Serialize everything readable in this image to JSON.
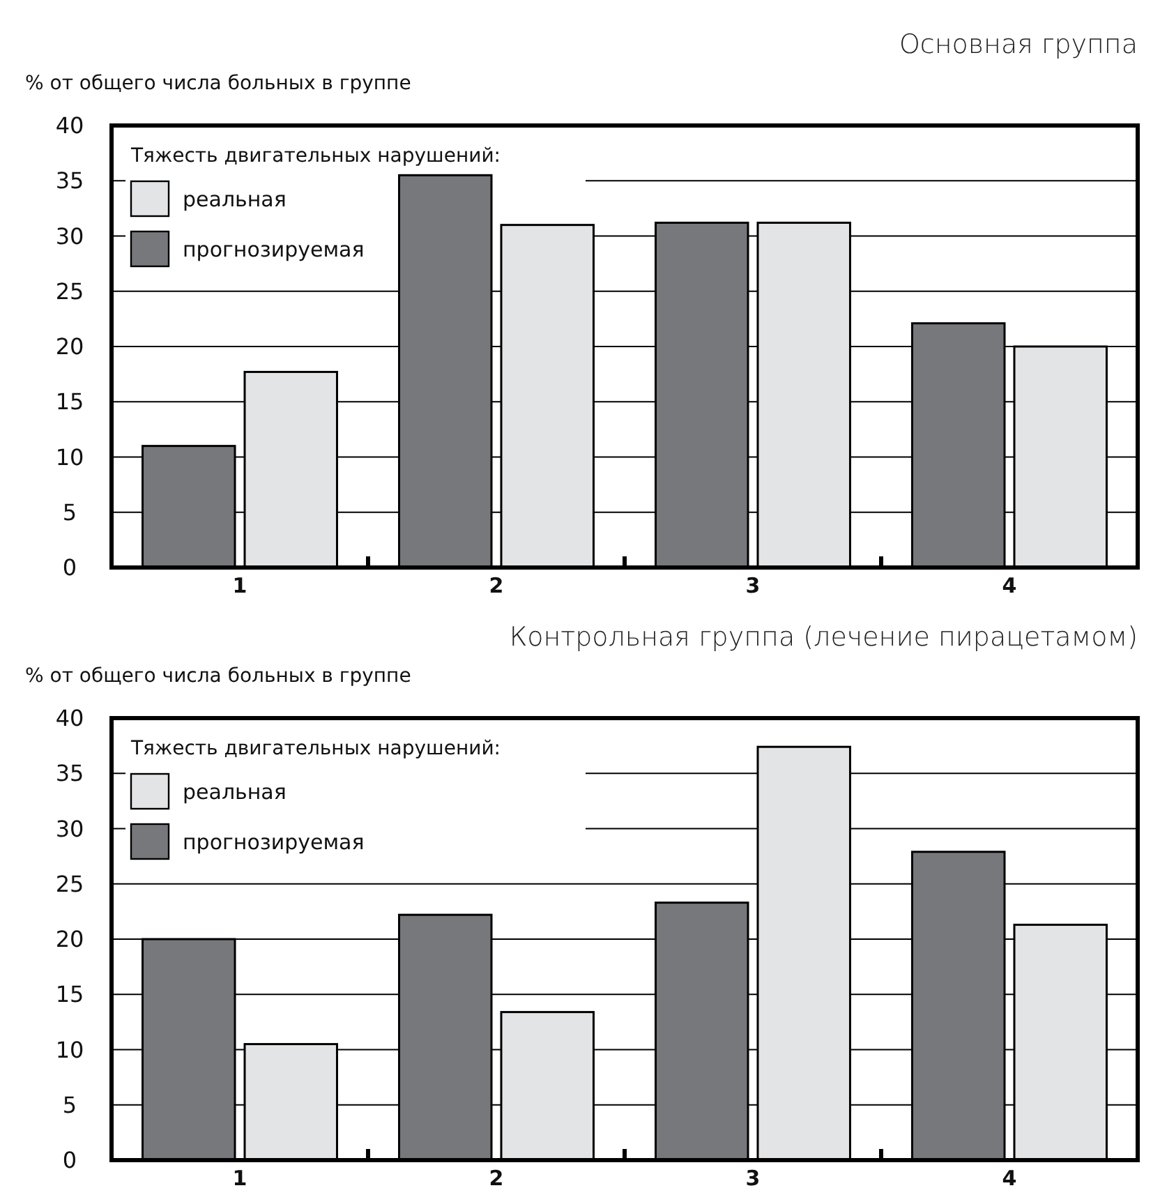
{
  "chart_data": [
    {
      "type": "bar",
      "title": "Основная группа",
      "ylabel": "% от общего числа больных в группе",
      "legend_title": "Тяжесть двигательных нарушений:",
      "categories": [
        "1",
        "2",
        "3",
        "4"
      ],
      "series": [
        {
          "name": "прогнозируемая",
          "color": "#77787b",
          "values": [
            11,
            35.5,
            31.2,
            22.1
          ]
        },
        {
          "name": "реальная",
          "color": "#e3e4e6",
          "values": [
            17.7,
            31,
            31.2,
            20
          ]
        }
      ],
      "ylim": [
        0,
        40
      ],
      "yticks": [
        0,
        5,
        10,
        15,
        20,
        25,
        30,
        35,
        40
      ],
      "grid": "y",
      "legend": "top left"
    },
    {
      "type": "bar",
      "title": "Контрольная группа (лечение пирацетамом)",
      "ylabel": "% от общего числа больных в группе",
      "legend_title": "Тяжесть двигательных нарушений:",
      "categories": [
        "1",
        "2",
        "3",
        "4"
      ],
      "series": [
        {
          "name": "прогнозируемая",
          "color": "#77787b",
          "values": [
            20,
            22.2,
            23.3,
            27.9
          ]
        },
        {
          "name": "реальная",
          "color": "#e3e4e6",
          "values": [
            10.5,
            13.4,
            37.4,
            21.3
          ]
        }
      ],
      "ylim": [
        0,
        40
      ],
      "yticks": [
        0,
        5,
        10,
        15,
        20,
        25,
        30,
        35,
        40
      ],
      "grid": "y",
      "legend": "top left"
    }
  ]
}
